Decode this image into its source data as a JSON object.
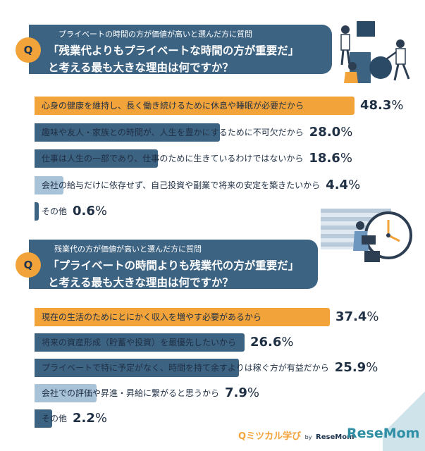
{
  "colors": {
    "dark": "#3d6383",
    "orange": "#f2a33a",
    "light": "#a8c2d7",
    "text": "#1f2f44",
    "teal": "#3c9fb0"
  },
  "section1": {
    "badge": "Q",
    "subtitle": "プライベートの時間の方が価値が高いと選んだ方に質問",
    "title_line1": "「残業代よりもプライベートな時間の方が重要だ」",
    "title_line2": "と考える最も大きな理由は何ですか？"
  },
  "section2": {
    "badge": "Q",
    "subtitle": "残業代の方が価値が高いと選んだ方に質問",
    "title_line1": "「プライベートの時間よりも残業代の方が重要だ」",
    "title_line2": "と考える最も大きな理由は何ですか？"
  },
  "chart_data": [
    {
      "type": "bar",
      "orientation": "horizontal",
      "categories": [
        "心身の健康を維持し、長く働き続けるために休息や睡眠が必要だから",
        "趣味や友人・家族との時間が、人生を豊かにするために不可欠だから",
        "仕事は人生の一部であり、仕事のために生きているわけではないから",
        "会社の給与だけに依存せず、自己投資や副業で将来の安定を築きたいから",
        "その他"
      ],
      "values": [
        48.3,
        28.0,
        18.6,
        4.4,
        0.6
      ],
      "value_labels": [
        "48.3",
        "28.0",
        "18.6",
        "4.4",
        "0.6"
      ],
      "unit": "%"
    },
    {
      "type": "bar",
      "orientation": "horizontal",
      "categories": [
        "現在の生活のためにとにかく収入を増やす必要があるから",
        "将来の資産形成（貯蓄や投資）を最優先したいから",
        "プライベートで特に予定がなく、時間を持て余すよりは稼ぐ方が有益だから",
        "会社での評価や昇進・昇給に繋がると思うから",
        "その他"
      ],
      "values": [
        37.4,
        26.6,
        25.9,
        7.9,
        2.2
      ],
      "value_labels": [
        "37.4",
        "26.6",
        "25.9",
        "7.9",
        "2.2"
      ],
      "unit": "%"
    }
  ],
  "footer": {
    "brand_left_main": "ミツカル学び",
    "brand_left_by": "by",
    "brand_left_sub": "ReseMom",
    "brand_right": "ReseMom"
  }
}
